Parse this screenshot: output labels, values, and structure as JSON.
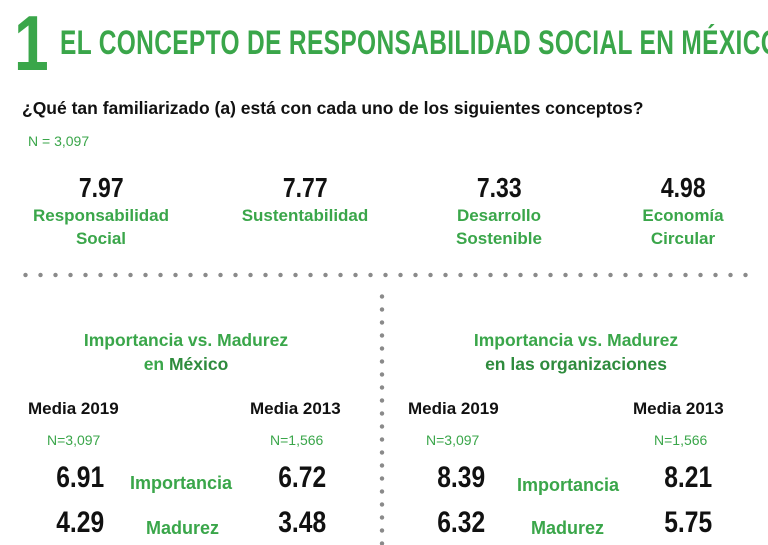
{
  "header": {
    "section_number": "1",
    "title": "EL CONCEPTO DE RESPONSABILIDAD SOCIAL EN MÉXICO"
  },
  "question": "¿Qué tan familiarizado (a) está con cada uno de los siguientes conceptos?",
  "sample_size": "N = 3,097",
  "concepts": [
    {
      "value": "7.97",
      "label_line1": "Responsabilidad",
      "label_line2": "Social"
    },
    {
      "value": "7.77",
      "label_line1": "Sustentabilidad",
      "label_line2": ""
    },
    {
      "value": "7.33",
      "label_line1": "Desarrollo",
      "label_line2": "Sostenible"
    },
    {
      "value": "4.98",
      "label_line1": "Economía",
      "label_line2": "Circular"
    }
  ],
  "panels": [
    {
      "title_line1": "Importancia vs. Madurez",
      "title_line2_prefix": "en ",
      "title_line2_strong": "México",
      "col1_head": "Media 2019",
      "col1_n": "N=3,097",
      "col2_head": "Media 2013",
      "col2_n": "N=1,566",
      "rows": [
        {
          "label": "Importancia",
          "v2019": "6.91",
          "v2013": "6.72"
        },
        {
          "label": "Madurez",
          "v2019": "4.29",
          "v2013": "3.48"
        }
      ]
    },
    {
      "title_line1": "Importancia vs. Madurez",
      "title_line2_prefix": "",
      "title_line2_strong": "en las organizaciones",
      "col1_head": "Media 2019",
      "col1_n": "N=3,097",
      "col2_head": "Media 2013",
      "col2_n": "N=1,566",
      "rows": [
        {
          "label": "Importancia",
          "v2019": "8.39",
          "v2013": "8.21"
        },
        {
          "label": "Madurez",
          "v2019": "6.32",
          "v2013": "5.75"
        }
      ]
    }
  ]
}
